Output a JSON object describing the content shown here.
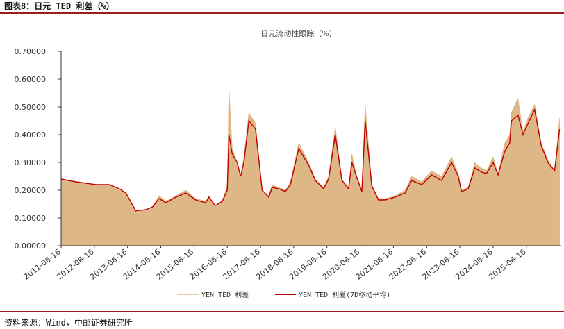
{
  "figure_label": "图表8：日元 TED 利差（%）",
  "source_note": "资料来源：Wind，中邮证券研究所",
  "colors": {
    "area": "#ddb785",
    "line": "#c00000",
    "rule": "#9b1c1c",
    "axis": "#333333"
  },
  "chart_data": {
    "type": "area",
    "title": "日元流动性跟踪（%）",
    "xlabel": "",
    "ylabel": "",
    "ylim": [
      0,
      0.7
    ],
    "yticks": [
      "0.00000",
      "0.10000",
      "0.20000",
      "0.30000",
      "0.40000",
      "0.50000",
      "0.60000",
      "0.70000"
    ],
    "xticks": [
      "2011-06-16",
      "2012-06-16",
      "2013-06-16",
      "2014-06-16",
      "2015-06-16",
      "2016-06-16",
      "2017-06-16",
      "2018-06-16",
      "2019-06-16",
      "2020-06-16",
      "2021-06-16",
      "2022-06-16",
      "2023-06-16",
      "2024-06-16",
      "2025-06-16"
    ],
    "legend": "bottom-center",
    "series": [
      {
        "name": "YEN TED 利差",
        "type": "area",
        "x": [
          2011.45,
          2011.9,
          2012.2,
          2012.5,
          2012.9,
          2013.2,
          2013.4,
          2013.7,
          2014.0,
          2014.2,
          2014.4,
          2014.6,
          2014.9,
          2015.2,
          2015.5,
          2015.8,
          2015.9,
          2016.05,
          2016.1,
          2016.3,
          2016.45,
          2016.5,
          2016.6,
          2016.75,
          2016.85,
          2016.95,
          2017.1,
          2017.3,
          2017.5,
          2017.7,
          2017.8,
          2018.0,
          2018.2,
          2018.35,
          2018.6,
          2018.9,
          2019.1,
          2019.35,
          2019.5,
          2019.7,
          2019.9,
          2020.1,
          2020.2,
          2020.35,
          2020.5,
          2020.6,
          2020.8,
          2021.0,
          2021.2,
          2021.5,
          2021.8,
          2022.0,
          2022.3,
          2022.6,
          2022.9,
          2023.2,
          2023.4,
          2023.5,
          2023.7,
          2023.9,
          2024.1,
          2024.25,
          2024.45,
          2024.6,
          2024.8,
          2024.95,
          2025.0,
          2025.2,
          2025.35,
          2025.5,
          2025.7,
          2025.9,
          2026.1,
          2026.3,
          2026.45
        ],
        "values": [
          0.24,
          0.23,
          0.225,
          0.22,
          0.22,
          0.2,
          0.19,
          0.12,
          0.13,
          0.14,
          0.18,
          0.16,
          0.18,
          0.2,
          0.17,
          0.16,
          0.18,
          0.15,
          0.14,
          0.16,
          0.22,
          0.57,
          0.35,
          0.3,
          0.25,
          0.32,
          0.48,
          0.44,
          0.2,
          0.18,
          0.22,
          0.21,
          0.2,
          0.23,
          0.37,
          0.3,
          0.24,
          0.21,
          0.25,
          0.43,
          0.24,
          0.21,
          0.33,
          0.25,
          0.2,
          0.51,
          0.22,
          0.17,
          0.17,
          0.18,
          0.2,
          0.25,
          0.23,
          0.27,
          0.25,
          0.32,
          0.26,
          0.2,
          0.21,
          0.3,
          0.28,
          0.27,
          0.32,
          0.26,
          0.37,
          0.4,
          0.48,
          0.53,
          0.41,
          0.46,
          0.51,
          0.37,
          0.31,
          0.27,
          0.46
        ]
      },
      {
        "name": "YEN TED 利差(7D移动平均)",
        "type": "line",
        "x": [
          2011.45,
          2011.9,
          2012.2,
          2012.5,
          2012.9,
          2013.2,
          2013.4,
          2013.7,
          2014.0,
          2014.2,
          2014.4,
          2014.6,
          2014.9,
          2015.2,
          2015.5,
          2015.8,
          2015.9,
          2016.05,
          2016.1,
          2016.3,
          2016.45,
          2016.5,
          2016.6,
          2016.75,
          2016.85,
          2016.95,
          2017.1,
          2017.3,
          2017.5,
          2017.7,
          2017.8,
          2018.0,
          2018.2,
          2018.35,
          2018.6,
          2018.9,
          2019.1,
          2019.35,
          2019.5,
          2019.7,
          2019.9,
          2020.1,
          2020.2,
          2020.35,
          2020.5,
          2020.6,
          2020.8,
          2021.0,
          2021.2,
          2021.5,
          2021.8,
          2022.0,
          2022.3,
          2022.6,
          2022.9,
          2023.2,
          2023.4,
          2023.5,
          2023.7,
          2023.9,
          2024.1,
          2024.25,
          2024.45,
          2024.6,
          2024.8,
          2024.95,
          2025.0,
          2025.2,
          2025.35,
          2025.5,
          2025.7,
          2025.9,
          2026.1,
          2026.3,
          2026.45
        ],
        "values": [
          0.24,
          0.23,
          0.225,
          0.22,
          0.22,
          0.205,
          0.19,
          0.125,
          0.13,
          0.14,
          0.17,
          0.155,
          0.175,
          0.19,
          0.165,
          0.155,
          0.175,
          0.15,
          0.145,
          0.16,
          0.2,
          0.4,
          0.33,
          0.3,
          0.25,
          0.3,
          0.45,
          0.42,
          0.2,
          0.175,
          0.21,
          0.205,
          0.195,
          0.22,
          0.35,
          0.29,
          0.235,
          0.205,
          0.24,
          0.4,
          0.235,
          0.205,
          0.3,
          0.245,
          0.195,
          0.45,
          0.215,
          0.165,
          0.165,
          0.175,
          0.19,
          0.235,
          0.22,
          0.255,
          0.235,
          0.3,
          0.25,
          0.195,
          0.205,
          0.28,
          0.265,
          0.26,
          0.3,
          0.255,
          0.34,
          0.37,
          0.45,
          0.47,
          0.4,
          0.44,
          0.49,
          0.36,
          0.3,
          0.27,
          0.42
        ]
      }
    ]
  }
}
